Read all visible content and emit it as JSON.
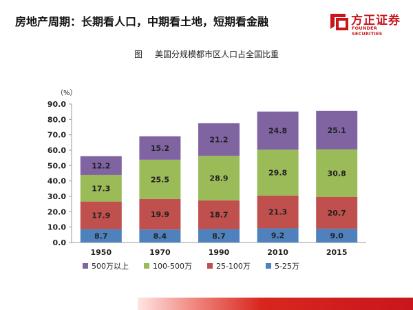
{
  "slide": {
    "title": "房地产周期：长期看人口，中期看土地，短期看金融"
  },
  "logo": {
    "name_cn": "方正证券",
    "name_en": "FOUNDER SECURITIES"
  },
  "figure": {
    "label": "图",
    "caption": "美国分规模都市区人口占全国比重"
  },
  "colors": {
    "brand_red": "#c8161d"
  },
  "chart_data": {
    "type": "bar",
    "stacked": true,
    "title": "",
    "unit_label": "（%）",
    "categories": [
      "1950",
      "1970",
      "1990",
      "2010",
      "2015"
    ],
    "series": [
      {
        "name": "5-25万",
        "color": "#4f81bd",
        "values": [
          8.7,
          8.4,
          8.7,
          9.2,
          9.0
        ]
      },
      {
        "name": "25-100万",
        "color": "#c0504d",
        "values": [
          17.9,
          19.9,
          18.7,
          21.3,
          20.7
        ]
      },
      {
        "name": "100-500万",
        "color": "#9bbb59",
        "values": [
          17.3,
          25.5,
          28.9,
          29.8,
          30.8
        ]
      },
      {
        "name": "500万以上",
        "color": "#8064a2",
        "values": [
          12.2,
          15.2,
          21.2,
          24.8,
          25.1
        ]
      }
    ],
    "ylim": [
      0,
      90
    ],
    "yticks": [
      "0.0",
      "10.0",
      "20.0",
      "30.0",
      "40.0",
      "50.0",
      "60.0",
      "70.0",
      "80.0",
      "90.0"
    ],
    "legend_order": [
      "500万以上",
      "100-500万",
      "25-100万",
      "5-25万"
    ],
    "legend_position": "bottom",
    "grid": false
  }
}
